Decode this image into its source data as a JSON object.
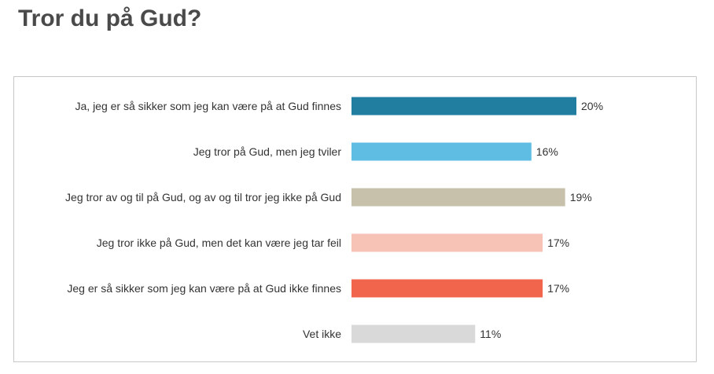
{
  "page": {
    "title": "Tror du på Gud?"
  },
  "chart_data": {
    "type": "bar",
    "orientation": "horizontal",
    "title": "Tror du på Gud?",
    "xlabel": "",
    "ylabel": "",
    "xlim": [
      0,
      25
    ],
    "grid": false,
    "legend": "none",
    "categories": [
      "Ja, jeg er så sikker som jeg kan være på at Gud finnes",
      "Jeg tror på Gud, men jeg tviler",
      "Jeg tror av og til på Gud, og av og til tror jeg ikke på Gud",
      "Jeg tror ikke på Gud, men det kan være jeg tar feil",
      "Jeg er så sikker som jeg kan være på at Gud ikke finnes",
      "Vet ikke"
    ],
    "values": [
      20,
      16,
      19,
      17,
      17,
      11
    ],
    "value_labels": [
      "20%",
      "16%",
      "19%",
      "17%",
      "17%",
      "11%"
    ],
    "colors": [
      "#227ea1",
      "#5fbde3",
      "#c7c0ab",
      "#f7c3b7",
      "#f0654c",
      "#d9d9d9"
    ]
  }
}
